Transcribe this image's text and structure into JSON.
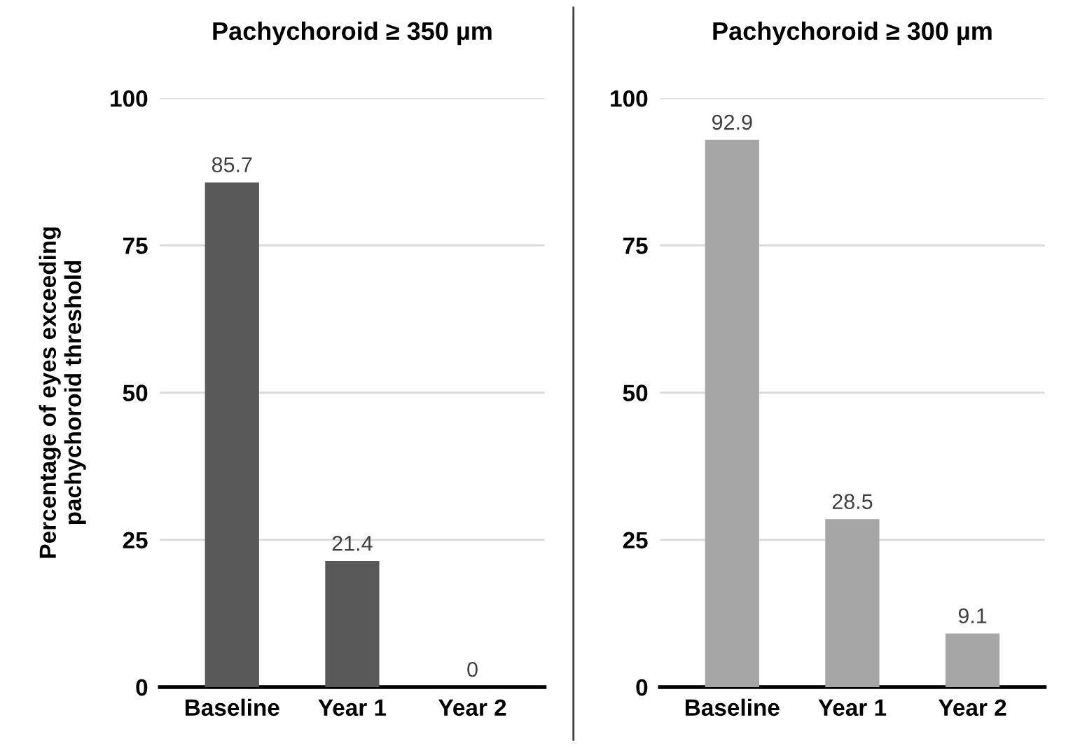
{
  "chart_data": [
    {
      "type": "bar",
      "title": "Pachychoroid ≥ 350 µm",
      "ylabel": "Percentage of eyes exceeding\npachychoroid threshold",
      "categories": [
        "Baseline",
        "Year 1",
        "Year 2"
      ],
      "values": [
        85.7,
        21.4,
        0
      ],
      "color": "#595959",
      "ylim": [
        0,
        100
      ],
      "yticks": [
        0,
        25,
        50,
        75,
        100
      ],
      "grid": "y",
      "data_labels": true
    },
    {
      "type": "bar",
      "title": "Pachychoroid ≥ 300 µm",
      "categories": [
        "Baseline",
        "Year 1",
        "Year 2"
      ],
      "values": [
        92.9,
        28.5,
        9.1
      ],
      "color": "#a6a6a6",
      "ylim": [
        0,
        100
      ],
      "yticks": [
        0,
        25,
        50,
        75,
        100
      ],
      "grid": "y",
      "data_labels": true
    }
  ]
}
